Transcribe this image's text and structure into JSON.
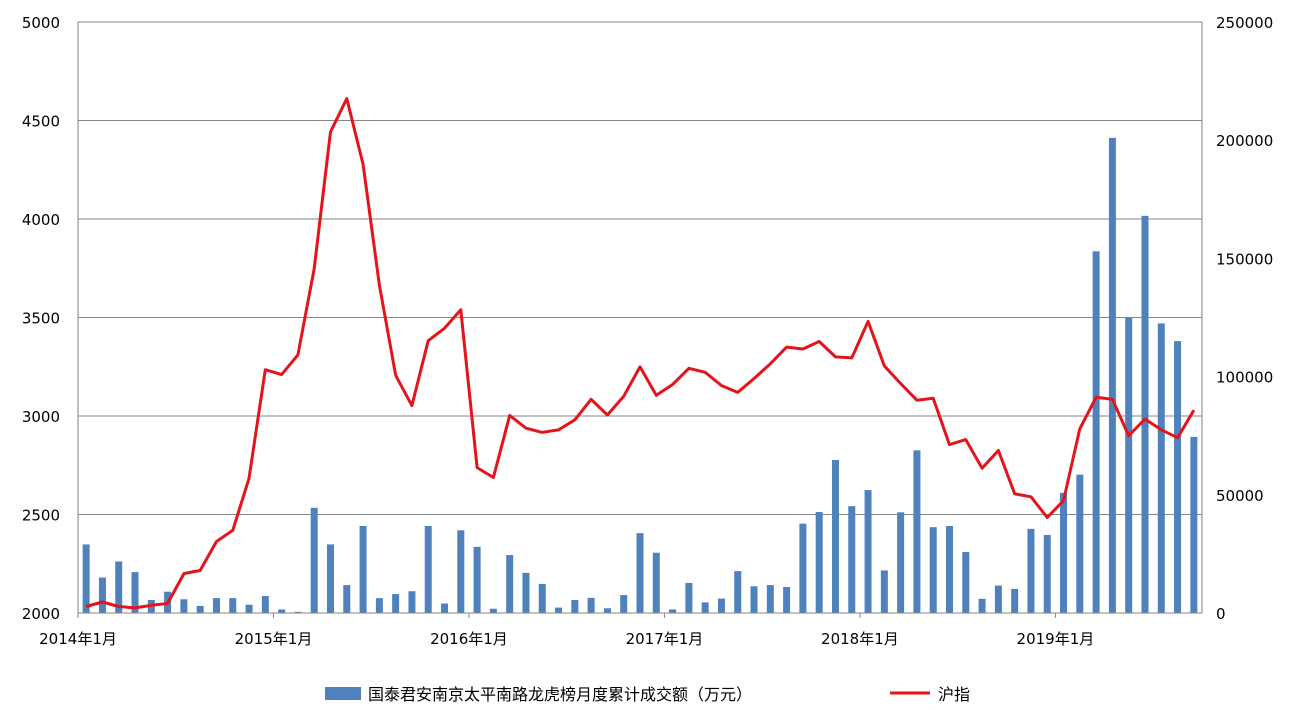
{
  "chart_data": {
    "type": "bar+line",
    "x_tick_labels": [
      "2014年1月",
      "2015年1月",
      "2016年1月",
      "2017年1月",
      "2018年1月",
      "2019年1月"
    ],
    "series": [
      {
        "name": "国泰君安南京太平南路龙虎榜月度累计成交额（万元）",
        "type": "bar",
        "axis": "right",
        "color": "#4F81BD",
        "values": [
          29000,
          15000,
          21800,
          17300,
          5500,
          9000,
          5800,
          3000,
          6300,
          6300,
          3500,
          7200,
          1500,
          500,
          44500,
          29000,
          11800,
          36800,
          6300,
          8000,
          9200,
          36800,
          4000,
          35000,
          28000,
          1800,
          24500,
          17000,
          12300,
          2300,
          5500,
          6400,
          2000,
          7600,
          33800,
          25500,
          1500,
          12700,
          4500,
          6100,
          17700,
          11300,
          11800,
          11000,
          37800,
          42700,
          64700,
          45200,
          52000,
          18000,
          42600,
          68800,
          36300,
          36800,
          25800,
          6000,
          11600,
          10200,
          35600,
          33000,
          50800,
          58500,
          153000,
          201000,
          125000,
          168000,
          122500,
          115000,
          74500
        ]
      },
      {
        "name": "沪指",
        "type": "line",
        "axis": "left",
        "color": "#E3141B",
        "values": [
          2033,
          2056,
          2033,
          2026,
          2039,
          2048,
          2200,
          2216,
          2363,
          2420,
          2683,
          3235,
          3210,
          3310,
          3748,
          4442,
          4611,
          4277,
          3664,
          3206,
          3053,
          3382,
          3445,
          3539,
          2738,
          2688,
          3003,
          2938,
          2917,
          2930,
          2980,
          3085,
          3005,
          3100,
          3250,
          3105,
          3160,
          3242,
          3222,
          3155,
          3120,
          3190,
          3265,
          3350,
          3340,
          3378,
          3300,
          3295,
          3480,
          3255,
          3165,
          3080,
          3090,
          2855,
          2880,
          2735,
          2825,
          2605,
          2590,
          2485,
          2570,
          2935,
          3095,
          3085,
          2900,
          2985,
          2930,
          2890,
          3030
        ]
      }
    ],
    "y_left": {
      "min": 2000,
      "max": 5000,
      "step": 500,
      "tick_labels": [
        "2000",
        "2500",
        "3000",
        "3500",
        "4000",
        "4500",
        "5000"
      ]
    },
    "y_right": {
      "min": 0,
      "max": 250000,
      "step": 50000,
      "tick_labels": [
        "0",
        "50000",
        "100000",
        "150000",
        "200000",
        "250000"
      ]
    },
    "grid": true,
    "legend_position": "bottom"
  }
}
